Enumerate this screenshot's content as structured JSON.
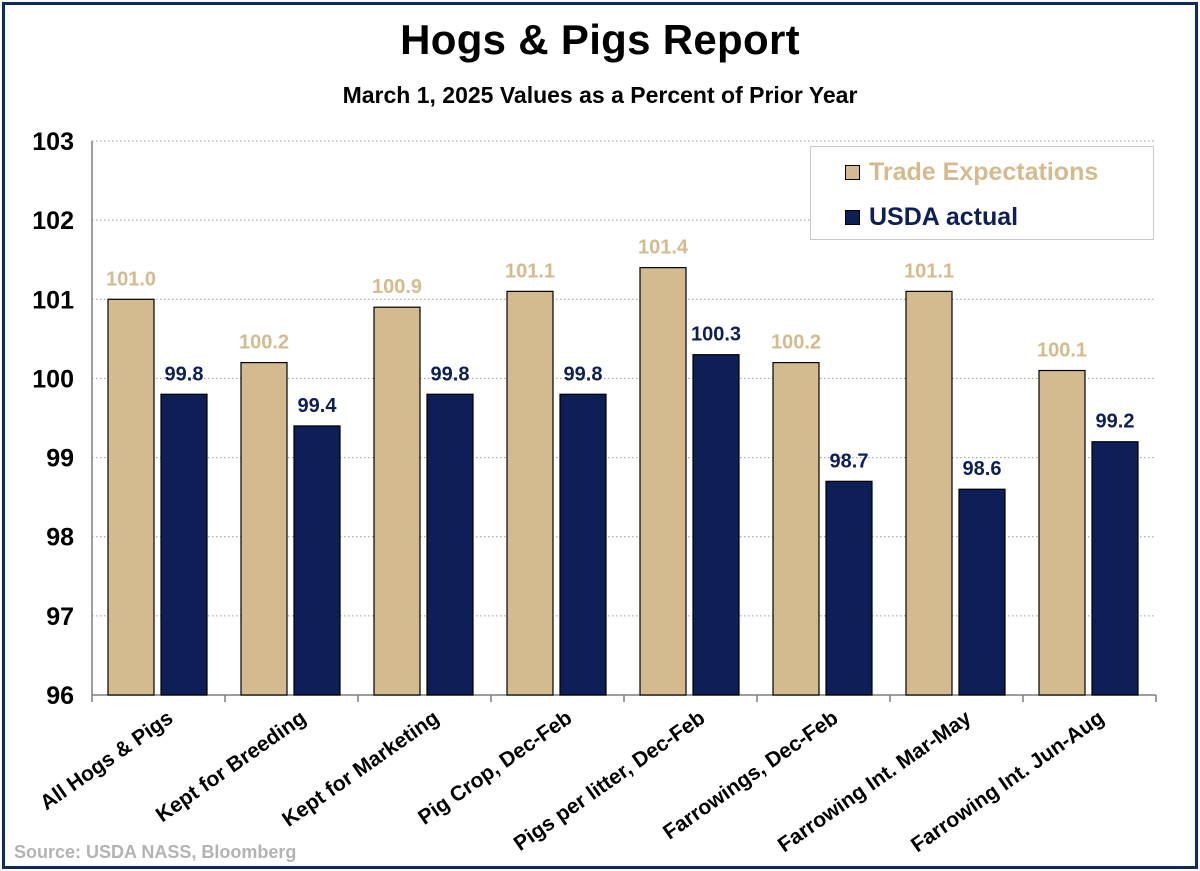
{
  "title": "Hogs & Pigs Report",
  "subtitle": "March 1, 2025 Values as a Percent of Prior Year",
  "source": "Source: USDA NASS, Bloomberg",
  "colors": {
    "trade": "#d4bb8f",
    "usda": "#0d1f56",
    "trade_label": "#d4bb8f",
    "usda_label": "#0d1f56",
    "axis": "#7f7f7f",
    "grid": "#9a9a9a",
    "frame": "#0f2a5c"
  },
  "chart_data": {
    "type": "bar",
    "title": "Hogs & Pigs Report",
    "subtitle": "March 1, 2025 Values as a Percent of Prior Year",
    "xlabel": "",
    "ylabel": "",
    "ylim": [
      96,
      103
    ],
    "yticks": [
      "96",
      "97",
      "98",
      "99",
      "100",
      "101",
      "102",
      "103"
    ],
    "grid": true,
    "legend_position": "top-right",
    "categories": [
      "All Hogs & Pigs",
      "Kept for Breeding",
      "Kept for Marketing",
      "Pig Crop, Dec-Feb",
      "Pigs per litter, Dec-Feb",
      "Farrowings, Dec-Feb",
      "Farrowing Int. Mar-May",
      "Farrowing Int. Jun-Aug"
    ],
    "series": [
      {
        "name": "Trade Expectations",
        "color": "#d4bb8f",
        "values": [
          101.0,
          100.2,
          100.9,
          101.1,
          101.4,
          100.2,
          101.1,
          100.1
        ],
        "labels": [
          "101.0",
          "100.2",
          "100.9",
          "101.1",
          "101.4",
          "100.2",
          "101.1",
          "100.1"
        ]
      },
      {
        "name": "USDA actual",
        "color": "#0d1f56",
        "values": [
          99.8,
          99.4,
          99.8,
          99.8,
          100.3,
          98.7,
          98.6,
          99.2
        ],
        "labels": [
          "99.8",
          "99.4",
          "99.8",
          "99.8",
          "100.3",
          "98.7",
          "98.6",
          "99.2"
        ]
      }
    ]
  }
}
